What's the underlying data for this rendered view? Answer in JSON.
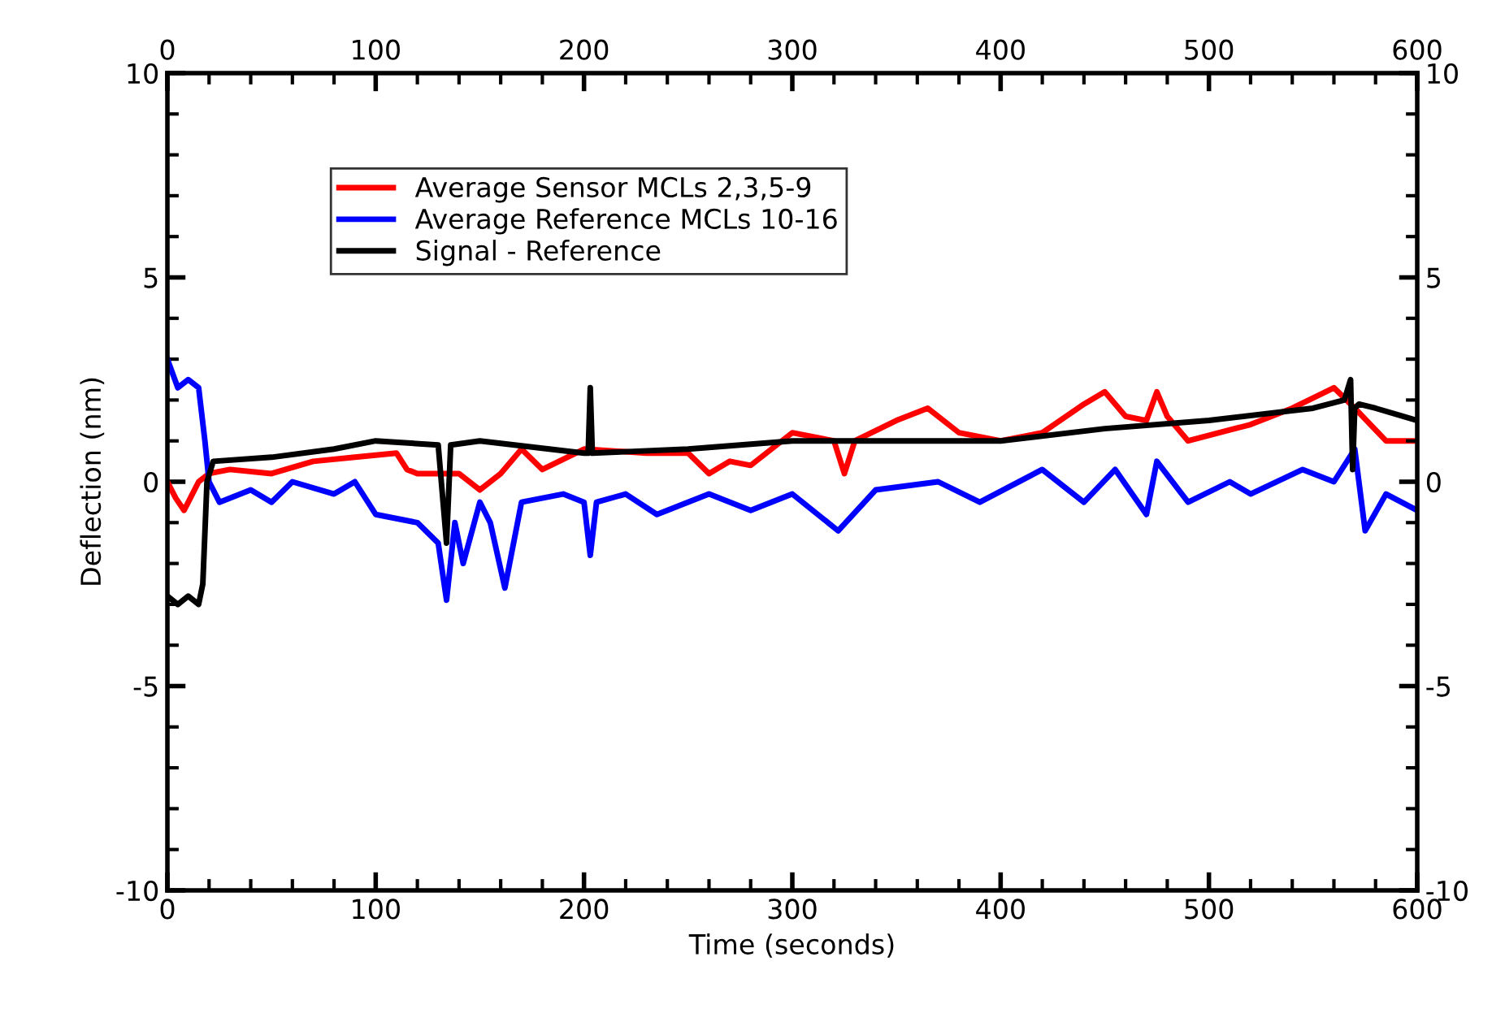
{
  "chart_data": {
    "type": "line",
    "xlabel": "Time (seconds)",
    "ylabel": "Deflection (nm)",
    "xlim": [
      0,
      600
    ],
    "xticks": [
      0,
      100,
      200,
      300,
      400,
      500,
      600
    ],
    "x2lim": [
      0,
      600
    ],
    "x2ticks": [
      0,
      100,
      200,
      300,
      400,
      500,
      600
    ],
    "ylim": [
      -10,
      10
    ],
    "yticks": [
      -10,
      -5,
      0,
      5,
      10
    ],
    "y2lim": [
      -10,
      10
    ],
    "y2ticks": [
      -10,
      -5,
      0,
      5,
      10
    ],
    "grid": false,
    "legend": "top left",
    "marker": "none",
    "line_style": "solid",
    "series": [
      {
        "name": "Average Sensor MCLs 2,3,5-9",
        "color": "#ff0000",
        "x": [
          0,
          4,
          8,
          12,
          15,
          20,
          30,
          50,
          70,
          90,
          110,
          115,
          120,
          140,
          150,
          160,
          170,
          180,
          200,
          230,
          250,
          260,
          270,
          280,
          300,
          320,
          325,
          330,
          350,
          365,
          380,
          400,
          420,
          440,
          450,
          460,
          470,
          475,
          480,
          490,
          520,
          540,
          560,
          570,
          585,
          600
        ],
        "values": [
          0,
          -0.4,
          -0.7,
          -0.3,
          0,
          0.2,
          0.3,
          0.2,
          0.5,
          0.6,
          0.7,
          0.3,
          0.2,
          0.2,
          -0.2,
          0.2,
          0.8,
          0.3,
          0.8,
          0.7,
          0.7,
          0.2,
          0.5,
          0.4,
          1.2,
          1.0,
          0.2,
          1.0,
          1.5,
          1.8,
          1.2,
          1.0,
          1.2,
          1.9,
          2.2,
          1.6,
          1.5,
          2.2,
          1.6,
          1.0,
          1.4,
          1.8,
          2.3,
          1.8,
          1.0,
          1.0
        ]
      },
      {
        "name": "Average Reference MCLs 10-16",
        "color": "#0000ff",
        "x": [
          0,
          5,
          10,
          15,
          18,
          20,
          25,
          40,
          50,
          60,
          80,
          90,
          100,
          120,
          130,
          134,
          138,
          142,
          150,
          155,
          162,
          170,
          190,
          200,
          203,
          206,
          220,
          235,
          260,
          280,
          300,
          322,
          340,
          370,
          390,
          420,
          440,
          455,
          470,
          475,
          490,
          510,
          520,
          545,
          560,
          570,
          575,
          585,
          600
        ],
        "values": [
          3.0,
          2.3,
          2.5,
          2.3,
          1.0,
          0,
          -0.5,
          -0.2,
          -0.5,
          0,
          -0.3,
          0,
          -0.8,
          -1.0,
          -1.5,
          -2.9,
          -1.0,
          -2.0,
          -0.5,
          -1.0,
          -2.6,
          -0.5,
          -0.3,
          -0.5,
          -1.8,
          -0.5,
          -0.3,
          -0.8,
          -0.3,
          -0.7,
          -0.3,
          -1.2,
          -0.2,
          0,
          -0.5,
          0.3,
          -0.5,
          0.3,
          -0.8,
          0.5,
          -0.5,
          0,
          -0.3,
          0.3,
          0,
          0.8,
          -1.2,
          -0.3,
          -0.7
        ]
      },
      {
        "name": "Signal - Reference",
        "color": "#000000",
        "x": [
          0,
          5,
          10,
          15,
          17,
          19,
          22,
          50,
          80,
          100,
          130,
          134,
          136,
          150,
          200,
          202,
          203,
          204,
          250,
          300,
          350,
          400,
          450,
          500,
          550,
          565,
          568,
          569,
          570,
          572,
          580,
          600
        ],
        "values": [
          -2.8,
          -3.0,
          -2.8,
          -3.0,
          -2.5,
          0,
          0.5,
          0.6,
          0.8,
          1.0,
          0.9,
          -1.5,
          0.9,
          1.0,
          0.7,
          0.7,
          2.3,
          0.7,
          0.8,
          1.0,
          1.0,
          1.0,
          1.3,
          1.5,
          1.8,
          2.0,
          2.5,
          0.3,
          1.8,
          1.9,
          1.8,
          1.5
        ]
      }
    ]
  }
}
